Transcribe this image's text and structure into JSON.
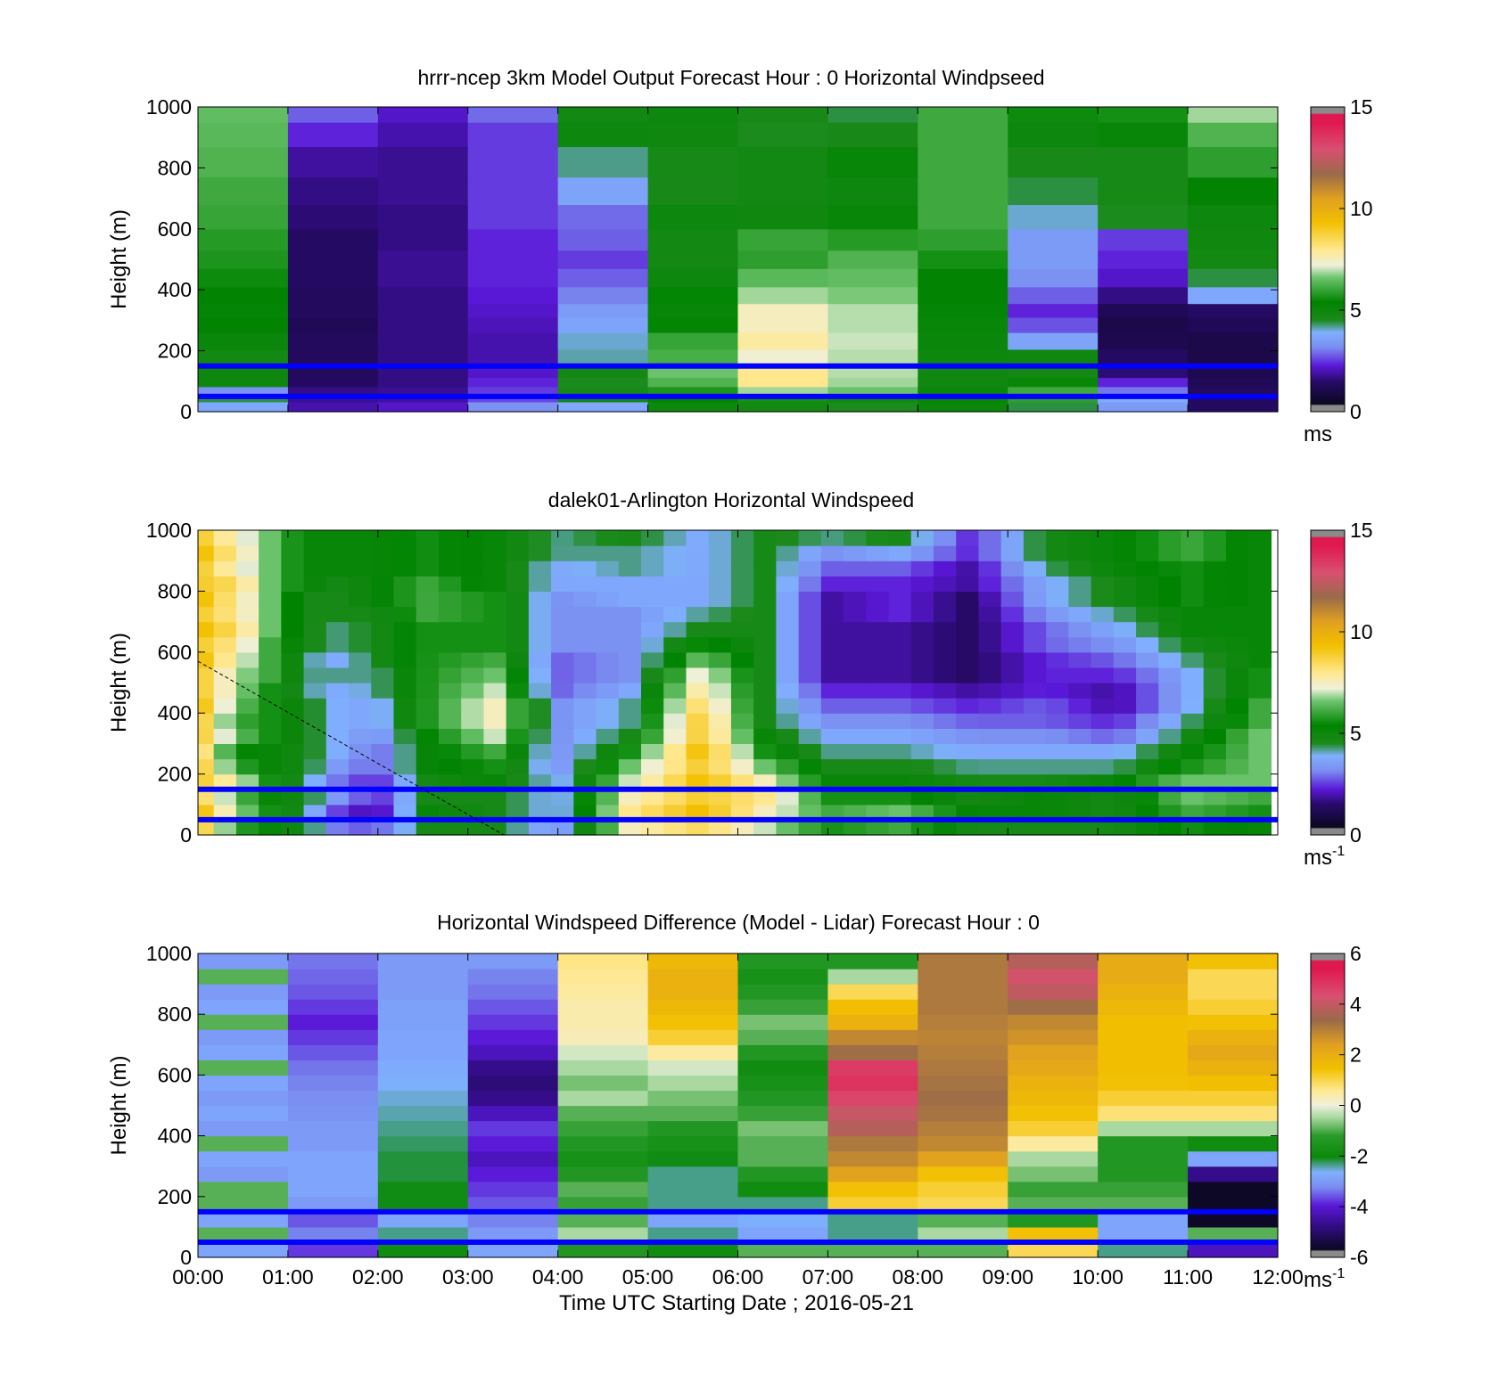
{
  "chart_data": [
    {
      "type": "heatmap",
      "title": "hrrr-ncep 3km Model Output   Forecast Hour : 0 Horizontal Windpseed",
      "ylabel": "Height (m)",
      "xlabel": "",
      "ylim": [
        0,
        1000
      ],
      "yticks": [
        0,
        200,
        400,
        600,
        800,
        1000
      ],
      "xticks": [
        "00:00",
        "01:00",
        "02:00",
        "03:00",
        "04:00",
        "05:00",
        "06:00",
        "07:00",
        "08:00",
        "09:00",
        "10:00",
        "11:00",
        "12:00"
      ],
      "xtick_labels_shown": false,
      "colorbar": {
        "min": 0,
        "max": 15,
        "ticks": [
          0,
          5,
          10,
          15
        ],
        "unit": "ms",
        "unit_sup": ""
      },
      "value_range": [
        0,
        15
      ],
      "heights": [
        20,
        45,
        70,
        95,
        130,
        180,
        230,
        290,
        330,
        380,
        440,
        500,
        560,
        640,
        720,
        820,
        920,
        980
      ],
      "columns": [
        [
          3.5,
          4.2,
          3.0,
          4.8,
          4.8,
          4.6,
          4.9,
          5.2,
          5.1,
          5.2,
          5.4,
          5.6,
          5.7,
          5.9,
          6.0,
          6.2,
          6.3,
          6.4
        ],
        [
          1.6,
          1.4,
          1.3,
          1.0,
          0.9,
          0.9,
          0.9,
          0.8,
          0.9,
          0.9,
          1.0,
          1.0,
          1.0,
          1.2,
          1.3,
          1.5,
          2.0,
          2.5
        ],
        [
          1.8,
          1.5,
          1.4,
          1.3,
          1.3,
          1.3,
          1.3,
          1.3,
          1.3,
          1.3,
          1.4,
          1.4,
          1.3,
          1.3,
          1.4,
          1.4,
          1.6,
          1.8
        ],
        [
          3.0,
          2.3,
          2.2,
          2.0,
          1.8,
          1.6,
          1.6,
          1.7,
          1.8,
          1.9,
          2.0,
          2.0,
          2.0,
          2.2,
          2.2,
          2.2,
          2.2,
          2.6
        ],
        [
          3.5,
          4.6,
          4.5,
          4.3,
          4.6,
          3.9,
          3.8,
          3.4,
          3.2,
          2.8,
          2.5,
          2.2,
          2.5,
          2.6,
          3.4,
          4.0,
          4.8,
          4.6
        ],
        [
          4.8,
          5.2,
          5.6,
          6.2,
          6.5,
          6.1,
          5.9,
          5.3,
          5.0,
          5.3,
          4.8,
          4.6,
          4.6,
          4.8,
          4.4,
          4.5,
          4.7,
          4.8
        ],
        [
          4.6,
          5.5,
          6.8,
          8.0,
          8.0,
          7.3,
          7.8,
          7.5,
          7.5,
          6.8,
          6.3,
          5.8,
          5.9,
          4.7,
          4.6,
          4.6,
          4.3,
          4.4
        ],
        [
          4.3,
          5.4,
          6.5,
          6.8,
          6.9,
          6.9,
          7.0,
          6.9,
          6.9,
          6.6,
          6.4,
          6.2,
          5.7,
          5.0,
          4.8,
          5.0,
          4.4,
          4.2
        ],
        [
          4.9,
          5.0,
          4.9,
          4.7,
          4.7,
          4.8,
          4.9,
          5.0,
          5.1,
          5.2,
          5.2,
          5.5,
          5.8,
          6.0,
          6.0,
          6.0,
          6.0,
          6.0
        ],
        [
          4.2,
          5.8,
          6.0,
          5.0,
          4.6,
          4.7,
          3.4,
          2.4,
          2.0,
          2.5,
          3.0,
          3.2,
          3.2,
          3.8,
          4.2,
          4.4,
          4.8,
          5.4
        ],
        [
          3.2,
          3.6,
          2.7,
          2.0,
          1.2,
          1.0,
          0.7,
          0.6,
          0.8,
          1.3,
          1.8,
          2.0,
          2.2,
          4.3,
          4.5,
          4.5,
          5.0,
          5.5
        ],
        [
          1.0,
          0.9,
          0.9,
          0.8,
          0.7,
          0.6,
          0.6,
          0.8,
          1.0,
          3.5,
          4.2,
          4.6,
          4.7,
          4.8,
          5.2,
          5.8,
          6.2,
          6.8
        ]
      ],
      "reference_lines_m": [
        150,
        50
      ]
    },
    {
      "type": "heatmap",
      "title": "dalek01-Arlington  Horizontal Windspeed",
      "ylabel": "Height (m)",
      "xlabel": "",
      "ylim": [
        0,
        1000
      ],
      "yticks": [
        0,
        200,
        400,
        600,
        800,
        1000
      ],
      "xticks": [
        "00:00",
        "01:00",
        "02:00",
        "03:00",
        "04:00",
        "05:00",
        "06:00",
        "07:00",
        "08:00",
        "09:00",
        "10:00",
        "11:00",
        "12:00"
      ],
      "xtick_labels_shown": false,
      "colorbar": {
        "min": 0,
        "max": 15,
        "ticks": [
          0,
          5,
          10,
          15
        ],
        "unit": "ms",
        "unit_sup": "-1"
      },
      "value_range": [
        0,
        15
      ],
      "time_steps_hours": [
        0.05,
        0.3,
        0.55,
        0.8,
        1.05,
        1.3,
        1.55,
        1.8,
        2.05,
        2.3,
        2.55,
        2.8,
        3.05,
        3.3,
        3.55,
        3.8,
        4.05,
        4.3,
        4.55,
        4.8,
        5.05,
        5.3,
        5.55,
        5.8,
        6.05,
        6.3,
        6.55,
        6.8,
        7.05,
        7.3,
        7.55,
        7.8,
        8.05,
        8.3,
        8.55,
        8.8,
        9.05,
        9.3,
        9.55,
        9.8,
        10.05,
        10.3,
        10.55,
        10.8,
        11.05,
        11.3,
        11.55,
        11.8
      ],
      "heights": [
        25,
        75,
        125,
        175,
        225,
        275,
        325,
        375,
        425,
        475,
        525,
        575,
        625,
        675,
        725,
        775,
        825,
        875,
        925,
        975
      ],
      "columns_by_key_time": [
        {
          "hour": 0.0,
          "values": [
            9.0,
            9.5,
            8.5,
            9.0,
            9.0,
            8.5,
            9.0,
            9.0,
            9.5,
            9.0,
            9.0,
            9.5,
            9.0,
            9.5,
            9.0,
            9.5,
            9.0,
            9.0,
            9.5,
            9.0
          ]
        },
        {
          "hour": 0.4,
          "values": [
            6.0,
            7.0,
            6.5,
            7.5,
            6.0,
            5.5,
            6.5,
            6.0,
            6.5,
            7.0,
            7.0,
            7.5,
            8.0,
            8.5,
            8.0,
            8.0,
            8.5,
            7.5,
            8.0,
            7.5
          ]
        },
        {
          "hour": 0.8,
          "values": [
            5.0,
            5.5,
            5.0,
            5.5,
            5.0,
            5.0,
            5.5,
            5.5,
            5.5,
            5.5,
            6.0,
            6.0,
            6.0,
            6.5,
            6.5,
            6.5,
            6.5,
            6.5,
            6.5,
            6.5
          ]
        },
        {
          "hour": 1.2,
          "values": [
            4.5,
            4.0,
            4.5,
            4.0,
            4.5,
            4.5,
            4.5,
            4.5,
            4.5,
            4.0,
            4.0,
            4.0,
            4.5,
            4.5,
            4.5,
            4.5,
            5.0,
            5.0,
            5.0,
            5.0
          ]
        },
        {
          "hour": 1.6,
          "values": [
            2.5,
            2.0,
            3.0,
            2.5,
            3.0,
            3.5,
            3.5,
            3.5,
            3.5,
            3.5,
            4.0,
            3.5,
            4.0,
            4.0,
            4.5,
            4.5,
            4.5,
            5.0,
            5.0,
            5.0
          ]
        },
        {
          "hour": 2.0,
          "values": [
            2.5,
            1.5,
            2.0,
            2.0,
            2.5,
            2.5,
            3.0,
            3.5,
            3.5,
            4.0,
            4.0,
            4.5,
            4.5,
            4.5,
            4.5,
            5.0,
            5.0,
            5.0,
            5.0,
            5.0
          ]
        },
        {
          "hour": 2.5,
          "values": [
            4.5,
            5.0,
            4.5,
            4.5,
            5.0,
            5.0,
            5.0,
            5.5,
            5.5,
            5.5,
            5.5,
            5.5,
            5.5,
            5.5,
            6.0,
            6.0,
            6.0,
            5.5,
            5.5,
            5.5
          ]
        },
        {
          "hour": 3.3,
          "values": [
            4.5,
            4.5,
            4.5,
            5.0,
            5.5,
            6.0,
            7.0,
            7.5,
            7.5,
            7.0,
            6.5,
            6.0,
            5.5,
            5.5,
            5.5,
            5.5,
            5.0,
            5.0,
            5.0,
            5.0
          ]
        },
        {
          "hour": 4.0,
          "values": [
            3.0,
            3.5,
            3.5,
            3.5,
            3.0,
            3.0,
            3.0,
            3.0,
            3.0,
            2.5,
            2.5,
            2.5,
            3.0,
            3.0,
            3.0,
            3.0,
            3.5,
            3.5,
            4.0,
            4.0
          ]
        },
        {
          "hour": 4.8,
          "values": [
            7.5,
            8.0,
            7.5,
            7.0,
            6.5,
            5.5,
            4.5,
            4.0,
            4.0,
            3.5,
            3.0,
            3.0,
            3.0,
            3.0,
            3.0,
            3.5,
            3.5,
            4.0,
            4.0,
            4.5
          ]
        },
        {
          "hour": 5.6,
          "values": [
            8.5,
            9.5,
            9.0,
            9.5,
            9.0,
            9.5,
            9.0,
            9.0,
            8.5,
            8.0,
            7.5,
            6.5,
            5.5,
            4.5,
            4.0,
            3.5,
            3.5,
            3.5,
            3.5,
            3.5
          ]
        },
        {
          "hour": 6.3,
          "values": [
            7.0,
            7.5,
            8.0,
            7.5,
            6.5,
            5.5,
            5.0,
            4.5,
            4.5,
            4.5,
            4.5,
            4.5,
            4.5,
            4.5,
            4.5,
            4.5,
            4.5,
            4.5,
            4.5,
            4.5
          ]
        },
        {
          "hour": 7.0,
          "values": [
            5.5,
            6.0,
            5.5,
            5.0,
            4.5,
            4.0,
            3.5,
            3.0,
            2.5,
            2.0,
            1.5,
            1.5,
            1.5,
            1.5,
            1.5,
            1.5,
            2.0,
            2.5,
            3.0,
            4.0
          ]
        },
        {
          "hour": 7.8,
          "values": [
            6.0,
            6.5,
            5.5,
            5.0,
            4.5,
            4.0,
            3.5,
            3.0,
            2.5,
            2.0,
            1.5,
            1.5,
            1.5,
            1.5,
            2.0,
            2.0,
            2.0,
            2.5,
            3.5,
            4.5
          ]
        },
        {
          "hour": 8.6,
          "values": [
            4.5,
            5.0,
            4.5,
            4.5,
            4.0,
            3.5,
            3.0,
            2.5,
            2.0,
            1.5,
            1.0,
            1.0,
            1.0,
            1.0,
            1.0,
            1.0,
            1.5,
            1.5,
            2.0,
            2.0
          ]
        },
        {
          "hour": 9.4,
          "values": [
            4.5,
            5.0,
            5.0,
            4.5,
            4.0,
            3.5,
            3.0,
            2.5,
            2.5,
            2.0,
            2.0,
            2.0,
            2.5,
            2.5,
            3.0,
            3.5,
            3.5,
            4.0,
            4.5,
            4.5
          ]
        },
        {
          "hour": 10.2,
          "values": [
            4.5,
            4.5,
            4.5,
            5.0,
            4.0,
            3.5,
            2.5,
            2.0,
            1.5,
            1.5,
            2.0,
            2.5,
            3.0,
            3.5,
            4.0,
            4.5,
            4.5,
            5.0,
            5.0,
            5.0
          ]
        },
        {
          "hour": 11.0,
          "values": [
            5.5,
            6.0,
            6.5,
            6.5,
            5.5,
            5.0,
            4.5,
            4.0,
            3.5,
            3.5,
            3.5,
            4.0,
            4.5,
            5.0,
            5.0,
            5.5,
            5.5,
            5.5,
            6.0,
            6.0
          ]
        },
        {
          "hour": 11.8,
          "values": [
            5.0,
            5.5,
            6.0,
            6.5,
            6.5,
            6.5,
            6.5,
            6.0,
            6.0,
            5.5,
            5.5,
            5.0,
            5.0,
            5.0,
            5.0,
            5.0,
            5.0,
            5.0,
            5.0,
            5.0
          ]
        }
      ],
      "data_end_hour": 11.95,
      "reference_lines_m": [
        150,
        50
      ]
    },
    {
      "type": "heatmap",
      "title": "Horizontal Windspeed Difference (Model - Lidar) Forecast Hour : 0",
      "ylabel": "Height (m)",
      "xlabel": "Time UTC  Starting Date ; 2016-05-21",
      "ylim": [
        0,
        1000
      ],
      "yticks": [
        0,
        200,
        400,
        600,
        800,
        1000
      ],
      "xticks": [
        "00:00",
        "01:00",
        "02:00",
        "03:00",
        "04:00",
        "05:00",
        "06:00",
        "07:00",
        "08:00",
        "09:00",
        "10:00",
        "11:00",
        "12:00"
      ],
      "xtick_labels_shown": true,
      "colorbar": {
        "min": -6,
        "max": 6,
        "ticks": [
          -6,
          -4,
          -2,
          0,
          2,
          4,
          6
        ],
        "unit": "ms",
        "unit_sup": "-1"
      },
      "value_range": [
        -6,
        6
      ],
      "heights": [
        25,
        75,
        125,
        175,
        225,
        275,
        325,
        375,
        425,
        475,
        525,
        575,
        625,
        675,
        725,
        775,
        825,
        875,
        925,
        975
      ],
      "columns": [
        [
          -3.0,
          -1.0,
          -3.0,
          -1.0,
          -1.0,
          -3.2,
          -3.0,
          -1.0,
          -3.2,
          -3.0,
          -3.2,
          -3.0,
          -1.0,
          -3.0,
          -3.2,
          -1.0,
          -3.0,
          -3.2,
          -1.0,
          -3.2
        ],
        [
          -4.0,
          -3.5,
          -3.8,
          -3.2,
          -3.0,
          -3.0,
          -3.0,
          -3.2,
          -3.2,
          -3.3,
          -3.4,
          -3.5,
          -3.6,
          -3.8,
          -4.0,
          -4.2,
          -4.0,
          -3.8,
          -3.7,
          -3.6
        ],
        [
          -2.0,
          -2.5,
          -3.0,
          -2.2,
          -2.2,
          -2.3,
          -2.3,
          -2.4,
          -2.5,
          -2.6,
          -2.7,
          -2.8,
          -2.9,
          -3.0,
          -3.0,
          -3.1,
          -3.1,
          -3.2,
          -3.2,
          -3.2
        ],
        [
          -3.0,
          -3.2,
          -3.5,
          -3.8,
          -4.0,
          -4.2,
          -4.5,
          -4.2,
          -4.0,
          -4.5,
          -5.0,
          -5.2,
          -5.0,
          -4.5,
          -4.2,
          -4.0,
          -3.8,
          -3.6,
          -3.5,
          -3.2
        ],
        [
          -1.5,
          -0.5,
          -1.0,
          -1.2,
          -1.0,
          -1.5,
          -1.8,
          -1.5,
          -1.2,
          -1.0,
          -0.5,
          -0.8,
          -0.5,
          -0.2,
          0.3,
          0.4,
          0.4,
          0.5,
          0.6,
          0.7
        ],
        [
          -2.0,
          -2.5,
          -3.0,
          -2.5,
          -2.5,
          -2.5,
          -2.2,
          -1.8,
          -1.5,
          -1.0,
          -0.8,
          -0.5,
          -0.2,
          0.5,
          1.2,
          1.5,
          1.8,
          2.0,
          2.0,
          1.8
        ],
        [
          -1.0,
          -3.0,
          -2.8,
          -2.5,
          -2.0,
          -1.5,
          -1.0,
          -1.0,
          -0.8,
          -1.2,
          -1.5,
          -1.8,
          -2.0,
          -1.5,
          -1.0,
          -0.8,
          -1.2,
          -1.5,
          -1.8,
          -1.5
        ],
        [
          -1.0,
          -2.5,
          -2.5,
          1.2,
          1.5,
          2.5,
          3.0,
          3.3,
          4.0,
          4.3,
          4.8,
          5.2,
          5.0,
          3.5,
          3.0,
          2.0,
          1.6,
          1.0,
          -0.5,
          -1.5
        ],
        [
          -1.0,
          -0.5,
          -1.0,
          1.0,
          1.2,
          1.5,
          2.5,
          3.0,
          3.2,
          3.4,
          3.5,
          3.4,
          3.3,
          3.2,
          3.1,
          3.2,
          3.3,
          3.3,
          3.3,
          3.3
        ],
        [
          1.0,
          1.5,
          -1.5,
          -1.0,
          -1.2,
          -0.8,
          -0.5,
          0.5,
          1.2,
          1.5,
          1.8,
          2.0,
          2.3,
          2.5,
          2.8,
          3.0,
          3.5,
          4.2,
          4.5,
          4.0
        ],
        [
          -2.5,
          -3.0,
          -3.0,
          -1.0,
          -1.2,
          -1.5,
          -1.5,
          -1.5,
          -0.5,
          0.8,
          1.2,
          1.5,
          1.6,
          1.6,
          1.6,
          1.6,
          1.8,
          2.0,
          2.2,
          2.2
        ],
        [
          -4.5,
          -1.0,
          -6.0,
          -6.0,
          -6.0,
          -5.0,
          -3.0,
          -2.0,
          -0.5,
          0.8,
          1.2,
          1.6,
          2.0,
          2.3,
          2.0,
          1.5,
          1.2,
          1.0,
          1.0,
          1.5
        ]
      ],
      "reference_lines_m": [
        150,
        50
      ]
    }
  ]
}
